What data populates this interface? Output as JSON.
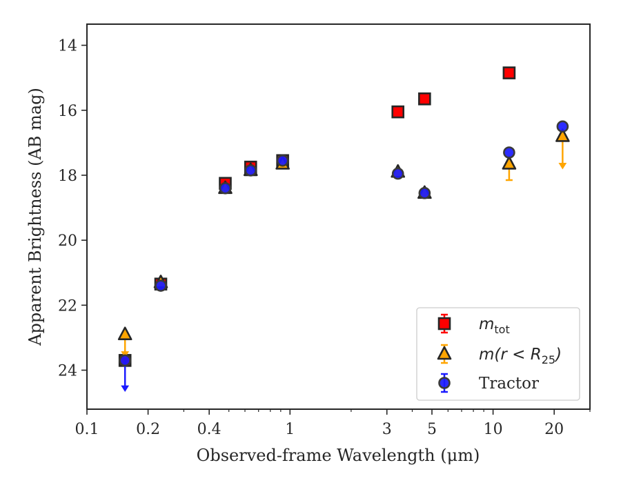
{
  "chart_data": {
    "type": "scatter",
    "xlabel": "Observed-frame Wavelength (μm)",
    "ylabel": "Apparent Brightness (AB mag)",
    "xscale": "log",
    "xlim": [
      0.1,
      30
    ],
    "ylim": [
      25.2,
      13.35
    ],
    "y_inverted": true,
    "x_ticks": [
      0.1,
      0.2,
      0.4,
      1,
      3,
      5,
      10,
      20
    ],
    "x_tick_labels": [
      "0.1",
      "0.2",
      "0.4",
      "1",
      "3",
      "5",
      "10",
      "20"
    ],
    "y_ticks": [
      14,
      16,
      18,
      20,
      22,
      24
    ],
    "y_tick_labels": [
      "14",
      "16",
      "18",
      "20",
      "22",
      "24"
    ],
    "grid": false,
    "legend_position": "lower-right",
    "legend": [
      {
        "label_base": "m",
        "label_sub": "tot",
        "marker": "square",
        "color": "#ff0000"
      },
      {
        "label_text": "m(r < R",
        "label_sub": "25",
        "label_close": ")",
        "marker": "triangle",
        "color": "#ffa500"
      },
      {
        "label_text": "Tractor",
        "marker": "circle",
        "color": "#1a1aff"
      }
    ],
    "series": [
      {
        "name": "m_tot",
        "marker": "square",
        "color": "#ff0000",
        "points": [
          {
            "x": 0.154,
            "y": 23.7,
            "upper_limit": true
          },
          {
            "x": 0.231,
            "y": 21.35
          },
          {
            "x": 0.48,
            "y": 18.25
          },
          {
            "x": 0.64,
            "y": 17.75
          },
          {
            "x": 0.92,
            "y": 17.55
          },
          {
            "x": 3.4,
            "y": 16.05
          },
          {
            "x": 4.6,
            "y": 15.65
          },
          {
            "x": 12.0,
            "y": 14.85
          }
        ]
      },
      {
        "name": "m(r<R25)",
        "marker": "triangle",
        "color": "#ffa500",
        "points": [
          {
            "x": 0.154,
            "y": 22.9,
            "upper_limit": true,
            "limit_to": 23.6
          },
          {
            "x": 0.231,
            "y": 21.3
          },
          {
            "x": 0.48,
            "y": 18.4
          },
          {
            "x": 0.64,
            "y": 17.85
          },
          {
            "x": 0.92,
            "y": 17.65
          },
          {
            "x": 3.4,
            "y": 17.9
          },
          {
            "x": 4.6,
            "y": 18.55
          },
          {
            "x": 12.0,
            "y": 17.65,
            "err": 0.5
          },
          {
            "x": 22.0,
            "y": 16.8,
            "upper_limit": true,
            "limit_to": 17.8
          }
        ]
      },
      {
        "name": "Tractor",
        "marker": "circle",
        "color": "#1a1aff",
        "points": [
          {
            "x": 0.154,
            "y": 23.7,
            "upper_limit": true,
            "limit_to": 24.65
          },
          {
            "x": 0.231,
            "y": 21.4
          },
          {
            "x": 0.48,
            "y": 18.4
          },
          {
            "x": 0.64,
            "y": 17.85
          },
          {
            "x": 0.92,
            "y": 17.55
          },
          {
            "x": 3.4,
            "y": 17.95
          },
          {
            "x": 4.6,
            "y": 18.55
          },
          {
            "x": 12.0,
            "y": 17.3
          },
          {
            "x": 22.0,
            "y": 16.5
          }
        ]
      }
    ]
  }
}
